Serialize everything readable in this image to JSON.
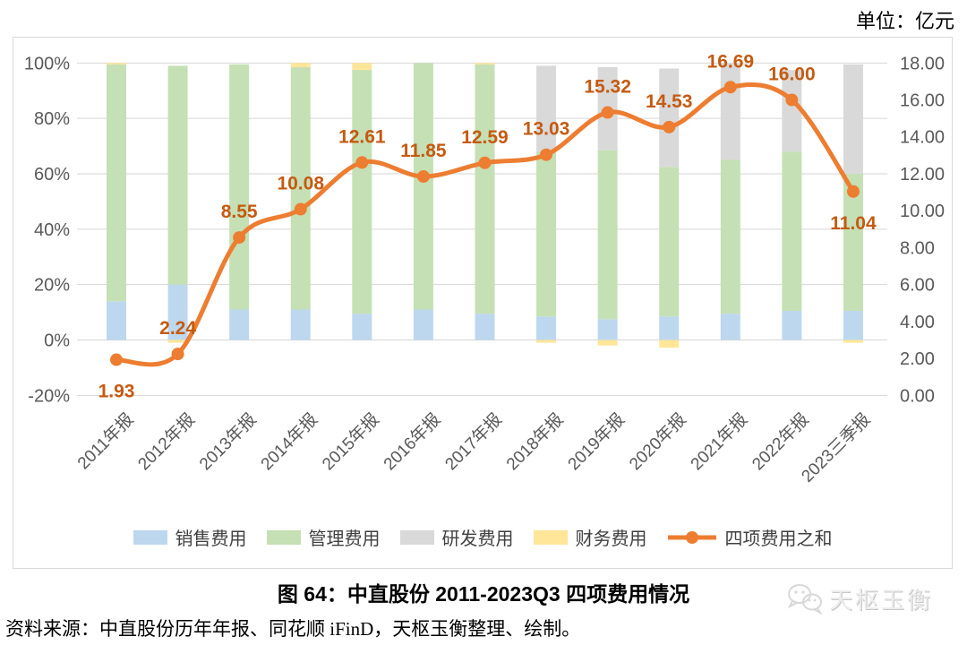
{
  "unit_label": "单位：亿元",
  "caption": {
    "title": "图 64：中直股份 2011-2023Q3 四项费用情况",
    "source": "资料来源：中直股份历年年报、同花顺 iFinD，天枢玉衡整理、绘制。"
  },
  "watermark": {
    "text": "天枢玉衡"
  },
  "chart_data": {
    "type": "combo-stacked-bar-line",
    "title": "图 64：中直股份 2011-2023Q3 四项费用情况",
    "unit": "亿元",
    "grid": true,
    "legend_position": "bottom",
    "categories": [
      "2011年报",
      "2012年报",
      "2013年报",
      "2014年报",
      "2015年报",
      "2016年报",
      "2017年报",
      "2018年报",
      "2019年报",
      "2020年报",
      "2021年报",
      "2022年报",
      "2023三季报"
    ],
    "left_axis": {
      "ticks": [
        "100%",
        "80%",
        "60%",
        "40%",
        "20%",
        "0%",
        "-20%"
      ],
      "max": 100,
      "min": -20
    },
    "right_axis": {
      "ticks": [
        "18.00",
        "16.00",
        "14.00",
        "12.00",
        "10.00",
        "8.00",
        "6.00",
        "4.00",
        "2.00",
        "0.00"
      ],
      "max": 18,
      "min": 0
    },
    "bar_unit": "percent_of_total",
    "series": [
      {
        "key": "sales",
        "name": "销售费用",
        "type": "bar",
        "color": "#BDD7EE",
        "values": [
          14,
          20,
          11,
          11,
          9.5,
          11,
          9.5,
          8.5,
          7.5,
          8.5,
          9.5,
          10.5,
          10.5
        ]
      },
      {
        "key": "mgmt",
        "name": "管理费用",
        "type": "bar",
        "color": "#C5E0B4",
        "values": [
          85.5,
          79,
          88.5,
          87.5,
          88,
          89,
          90,
          59.5,
          61,
          54,
          55.5,
          57.5,
          49.5
        ]
      },
      {
        "key": "rd",
        "name": "研发费用",
        "type": "bar",
        "color": "#D9D9D9",
        "values": [
          0,
          0,
          0,
          0,
          0,
          0,
          0,
          31,
          30,
          35.5,
          35,
          29.5,
          39.5
        ]
      },
      {
        "key": "fin",
        "name": "财务费用",
        "type": "bar",
        "color": "#FFE699",
        "values": [
          0.5,
          -1,
          0,
          1.5,
          2.5,
          0,
          0.5,
          -1,
          -2,
          -2.8,
          0,
          0,
          -1
        ]
      },
      {
        "key": "total",
        "name": "四项费用之和",
        "type": "line",
        "axis": "right",
        "color": "#ED7D31",
        "values": [
          1.93,
          2.24,
          8.55,
          10.08,
          12.61,
          11.85,
          12.59,
          13.03,
          15.32,
          14.53,
          16.69,
          16.0,
          11.04
        ]
      }
    ],
    "label_color": "#C55A11",
    "axis_text_color": "#595959",
    "gridline_color": "#d6d6d6"
  }
}
